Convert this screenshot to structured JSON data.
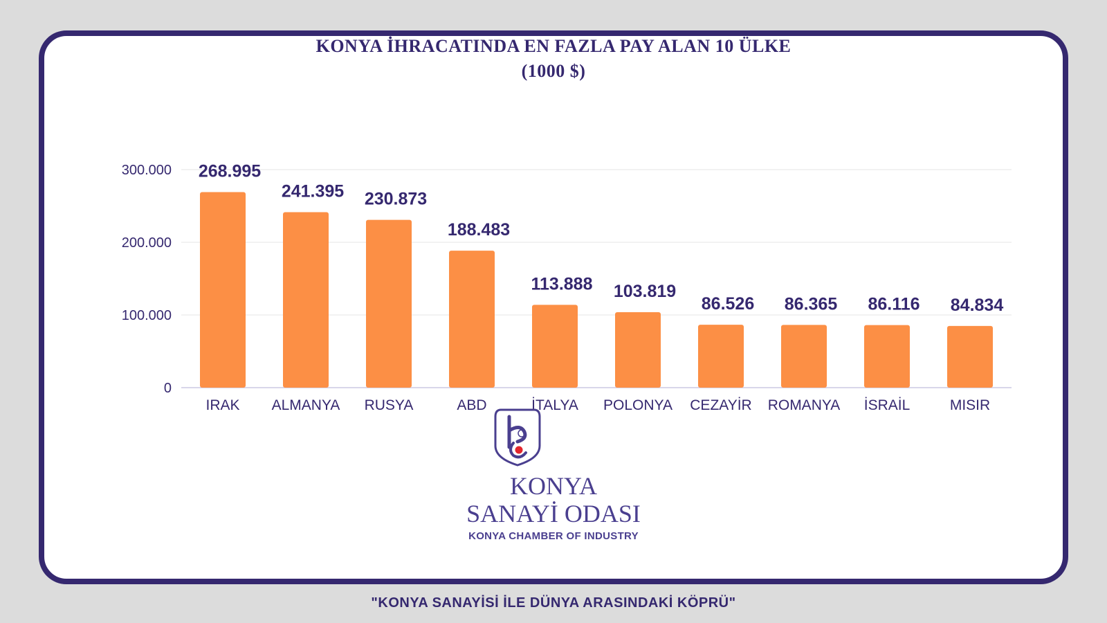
{
  "chart_data": {
    "type": "bar",
    "title_line1": "KONYA İHRACATINDA EN FAZLA PAY ALAN 10 ÜLKE",
    "title_line2": "(1000 $)",
    "categories": [
      "IRAK",
      "ALMANYA",
      "RUSYA",
      "ABD",
      "İTALYA",
      "POLONYA",
      "CEZAYİR",
      "ROMANYA",
      "İSRAİL",
      "MISIR"
    ],
    "values": [
      268995,
      241395,
      230873,
      188483,
      113888,
      103819,
      86526,
      86365,
      86116,
      84834
    ],
    "value_labels": [
      "268.995",
      "241.395",
      "230.873",
      "188.483",
      "113.888",
      "103.819",
      "86.526",
      "86.365",
      "86.116",
      "84.834"
    ],
    "ylim": [
      0,
      300000
    ],
    "yticks": [
      0,
      100000,
      200000,
      300000
    ],
    "ytick_labels": [
      "0",
      "100.000",
      "200.000",
      "300.000"
    ],
    "grid": true,
    "bar_color": "#fc8f45",
    "text_color": "#35286f"
  },
  "logo": {
    "name_line1": "KONYA",
    "name_line2": "SANAYİ ODASI",
    "name_en": "KONYA CHAMBER OF INDUSTRY"
  },
  "slogan": "\"KONYA SANAYİSİ İLE DÜNYA ARASINDAKİ KÖPRÜ\"",
  "colors": {
    "frame": "#35286f",
    "background": "#dcdcdc",
    "logo_accent": "#e3262d"
  }
}
